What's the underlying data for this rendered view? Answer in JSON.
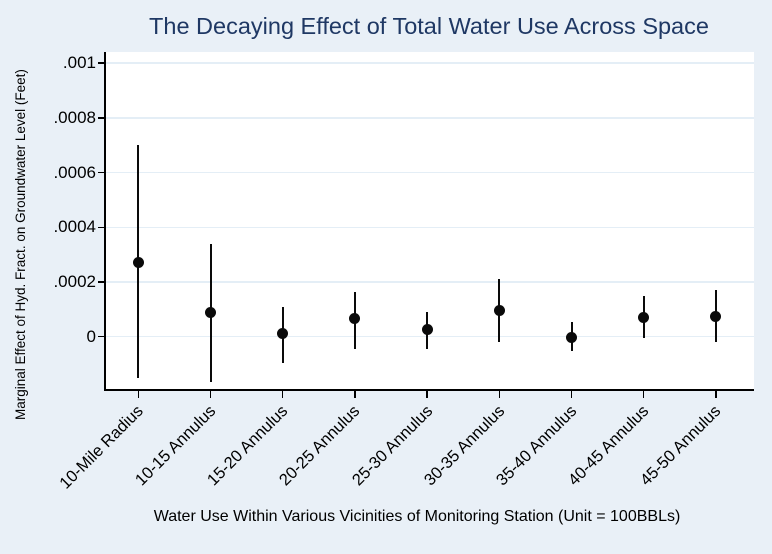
{
  "chart_data": {
    "type": "scatter",
    "subtype": "coefficient-plot-with-confidence-intervals",
    "title": "The Decaying Effect of Total Water Use Across Space",
    "xlabel": "Water Use Within Various Vicinities of Monitoring Station (Unit = 100BBLs)",
    "ylabel": "Marginal Effect of Hyd. Fract. on Groundwater Level (Feet)",
    "categories": [
      "10-Mile Radius",
      "10-15 Annulus",
      "15-20 Annulus",
      "20-25 Annulus",
      "25-30 Annulus",
      "30-35 Annulus",
      "35-40 Annulus",
      "40-45 Annulus",
      "45-50 Annulus"
    ],
    "series": [
      {
        "name": "point_estimate",
        "values": [
          0.00027,
          9e-05,
          1e-05,
          6.5e-05,
          2.5e-05,
          9.5e-05,
          -2e-06,
          7e-05,
          7.5e-05
        ]
      },
      {
        "name": "ci_lower",
        "values": [
          -0.00015,
          -0.000165,
          -9.7e-05,
          -4.5e-05,
          -4.5e-05,
          -2e-05,
          -5.4e-05,
          -5e-06,
          -2e-05
        ]
      },
      {
        "name": "ci_upper",
        "values": [
          0.0007,
          0.00034,
          0.00011,
          0.000165,
          9e-05,
          0.00021,
          5.3e-05,
          0.00015,
          0.00017
        ]
      }
    ],
    "y_ticks": [
      {
        "label": "0",
        "value": 0
      },
      {
        "label": ".0002",
        "value": 0.0002
      },
      {
        "label": ".0004",
        "value": 0.0004
      },
      {
        "label": ".0006",
        "value": 0.0006
      },
      {
        "label": ".0008",
        "value": 0.0008
      },
      {
        "label": ".001",
        "value": 0.001
      }
    ],
    "ylim": [
      -0.00019,
      0.00104
    ],
    "grid": true,
    "legend": false,
    "colors": {
      "background": "#e9f0f7",
      "plot_background": "#ffffff",
      "gridline": "#e4eef6",
      "axis": "#000000",
      "marker": "#0a0a0a",
      "title": "#1f3864",
      "text": "#000000"
    }
  }
}
